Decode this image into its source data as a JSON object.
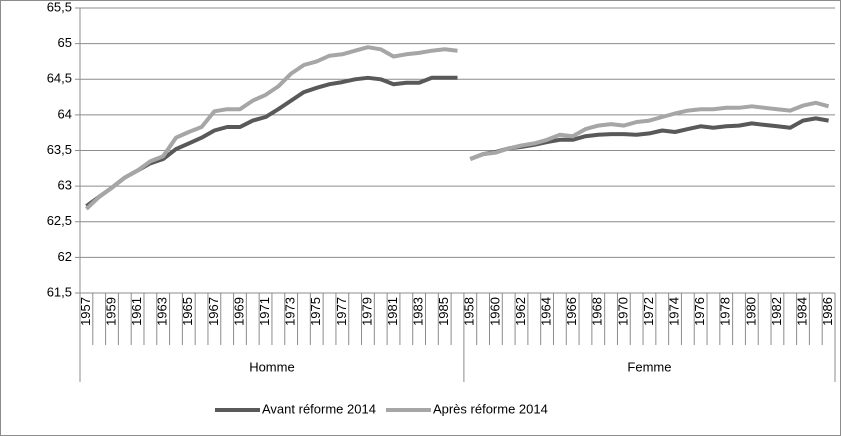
{
  "chart_data": {
    "type": "line",
    "categories": [
      {
        "group": "Homme",
        "labels": [
          "1957",
          null,
          "1959",
          null,
          "1961",
          null,
          "1963",
          null,
          "1965",
          null,
          "1967",
          null,
          "1969",
          null,
          "1971",
          null,
          "1973",
          null,
          "1975",
          null,
          "1977",
          null,
          "1979",
          null,
          "1981",
          null,
          "1983",
          null,
          "1985",
          null
        ]
      },
      {
        "group": "Femme",
        "labels": [
          "1958",
          null,
          "1960",
          null,
          "1962",
          null,
          "1964",
          null,
          "1966",
          null,
          "1968",
          null,
          "1970",
          null,
          "1972",
          null,
          "1974",
          null,
          "1976",
          null,
          "1978",
          null,
          "1980",
          null,
          "1982",
          null,
          "1984",
          null,
          "1986"
        ]
      }
    ],
    "series": [
      {
        "name": "Avant réforme 2014",
        "color": "#595959",
        "values": [
          [
            62.72,
            62.85,
            62.98,
            63.12,
            63.22,
            63.32,
            63.38,
            63.52,
            63.6,
            63.68,
            63.78,
            63.83,
            63.83,
            63.92,
            63.97,
            64.08,
            64.2,
            64.32,
            64.38,
            64.43,
            64.46,
            64.5,
            64.52,
            64.5,
            64.43,
            64.45,
            64.45,
            64.52,
            64.52,
            64.52
          ],
          [
            63.38,
            63.45,
            63.48,
            63.53,
            63.55,
            63.58,
            63.62,
            63.65,
            63.65,
            63.7,
            63.72,
            63.73,
            63.73,
            63.72,
            63.74,
            63.78,
            63.76,
            63.8,
            63.84,
            63.82,
            63.84,
            63.85,
            63.88,
            63.86,
            63.84,
            63.82,
            63.92,
            63.95,
            63.92
          ]
        ]
      },
      {
        "name": "Après réforme 2014",
        "color": "#a6a6a6",
        "values": [
          [
            62.68,
            62.85,
            62.98,
            63.12,
            63.22,
            63.35,
            63.42,
            63.68,
            63.76,
            63.83,
            64.05,
            64.08,
            64.08,
            64.2,
            64.28,
            64.4,
            64.58,
            64.7,
            64.75,
            64.83,
            64.85,
            64.9,
            64.95,
            64.92,
            64.82,
            64.85,
            64.87,
            64.9,
            64.92,
            64.9
          ],
          [
            63.38,
            63.45,
            63.47,
            63.53,
            63.57,
            63.6,
            63.65,
            63.72,
            63.7,
            63.8,
            63.85,
            63.87,
            63.85,
            63.9,
            63.92,
            63.97,
            64.02,
            64.06,
            64.08,
            64.08,
            64.1,
            64.1,
            64.12,
            64.1,
            64.08,
            64.06,
            64.13,
            64.17,
            64.12
          ]
        ]
      }
    ],
    "ylim": [
      61.5,
      65.5
    ],
    "yticks": [
      {
        "value": 61.5,
        "label": "61,5"
      },
      62,
      {
        "value": 62.5,
        "label": "62,5"
      },
      63,
      {
        "value": 63.5,
        "label": "63,5"
      },
      64,
      {
        "value": 64.5,
        "label": "64,5"
      },
      65,
      {
        "value": 65.5,
        "label": "65,5"
      }
    ],
    "grid": true,
    "legend": "bottom"
  }
}
